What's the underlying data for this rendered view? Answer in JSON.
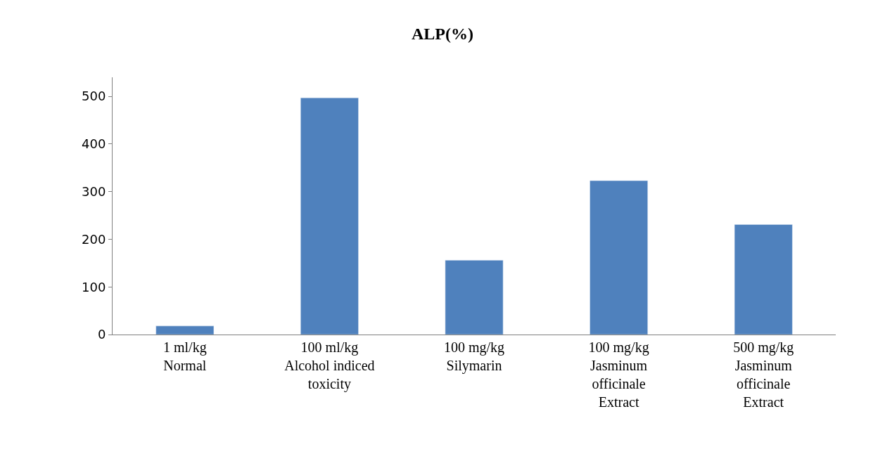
{
  "chart_data": {
    "type": "bar",
    "title": "ALP(%)",
    "categories": [
      "1 ml/kg\nNormal",
      "100 ml/kg\nAlcohol indiced\ntoxicity",
      "100 mg/kg\nSilymarin",
      "100 mg/kg\nJasminum\nofficinale\nExtract",
      "500 mg/kg\nJasminum\nofficinale\nExtract"
    ],
    "values": [
      18,
      497,
      156,
      323,
      231
    ],
    "color": "#4f81bd",
    "ylim": [
      0,
      540
    ],
    "yticks": [
      0,
      100,
      200,
      300,
      400,
      500
    ]
  }
}
